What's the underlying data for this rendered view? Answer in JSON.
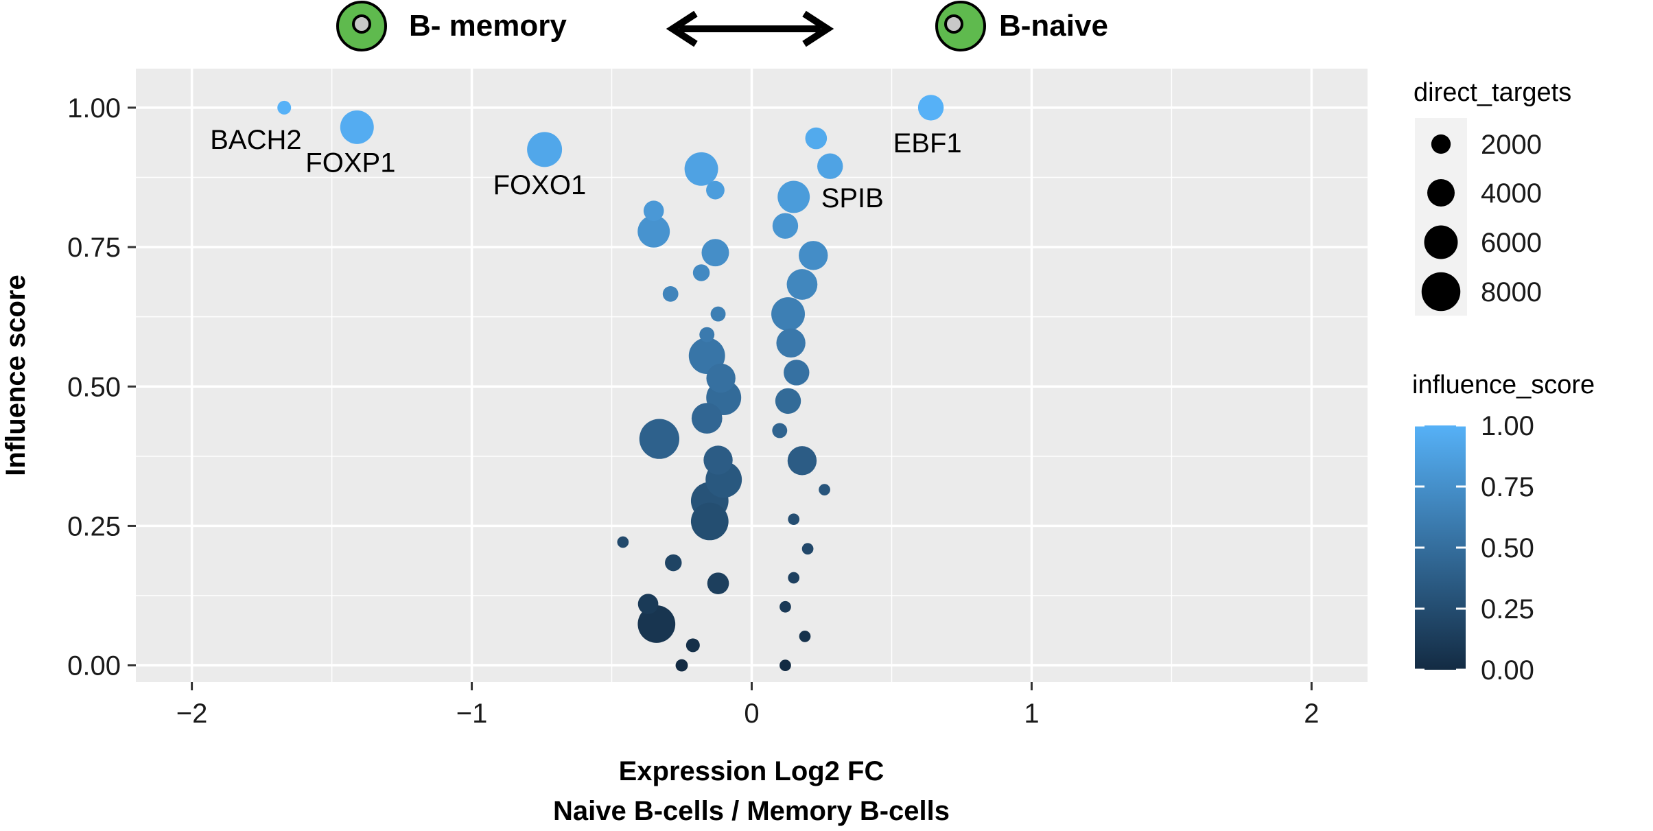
{
  "header": {
    "left_label": "B- memory",
    "right_label": "B-naive"
  },
  "chart_data": {
    "type": "scatter",
    "xlabel_line1": "Expression Log2 FC",
    "xlabel_line2": "Naive B-cells / Memory B-cells",
    "ylabel": "Influence score",
    "xlim": [
      -2.2,
      2.2
    ],
    "ylim": [
      -0.03,
      1.07
    ],
    "x_ticks": [
      -2,
      -1,
      0,
      1,
      2
    ],
    "x_tick_labels": [
      "−2",
      "−1",
      "0",
      "1",
      "2"
    ],
    "y_ticks": [
      0.0,
      0.25,
      0.5,
      0.75,
      1.0
    ],
    "y_tick_labels": [
      "0.00",
      "0.25",
      "0.50",
      "0.75",
      "1.00"
    ],
    "grid": true,
    "panel_background": "#EBEBEB",
    "color_low": "#132B43",
    "color_high": "#56B1F7",
    "size_legend": {
      "title": "direct_targets",
      "values": [
        2000,
        4000,
        6000,
        8000
      ],
      "labels": [
        "2000",
        "4000",
        "6000",
        "8000"
      ]
    },
    "color_legend": {
      "title": "influence_score",
      "ticks": [
        1.0,
        0.75,
        0.5,
        0.25,
        0.0
      ],
      "labels": [
        "1.00",
        "0.75",
        "0.50",
        "0.25",
        "0.00"
      ]
    },
    "points": [
      {
        "x": -1.67,
        "y": 1.0,
        "size": 1000,
        "label": "BACH2"
      },
      {
        "x": -1.41,
        "y": 0.965,
        "size": 6000,
        "label": "FOXP1"
      },
      {
        "x": -0.74,
        "y": 0.925,
        "size": 6500,
        "label": "FOXO1"
      },
      {
        "x": 0.64,
        "y": 1.0,
        "size": 3500,
        "label": "EBF1"
      },
      {
        "x": 0.15,
        "y": 0.84,
        "size": 5500,
        "label": "SPIB"
      },
      {
        "x": 0.23,
        "y": 0.945,
        "size": 2500
      },
      {
        "x": 0.28,
        "y": 0.895,
        "size": 3500
      },
      {
        "x": -0.18,
        "y": 0.89,
        "size": 6000
      },
      {
        "x": -0.13,
        "y": 0.852,
        "size": 1800
      },
      {
        "x": -0.35,
        "y": 0.815,
        "size": 2200
      },
      {
        "x": 0.12,
        "y": 0.788,
        "size": 3500
      },
      {
        "x": -0.35,
        "y": 0.778,
        "size": 5500
      },
      {
        "x": 0.22,
        "y": 0.735,
        "size": 4500
      },
      {
        "x": -0.13,
        "y": 0.74,
        "size": 4000
      },
      {
        "x": -0.18,
        "y": 0.704,
        "size": 1500
      },
      {
        "x": 0.18,
        "y": 0.683,
        "size": 5000
      },
      {
        "x": -0.29,
        "y": 0.666,
        "size": 1300
      },
      {
        "x": -0.12,
        "y": 0.63,
        "size": 1200
      },
      {
        "x": 0.13,
        "y": 0.63,
        "size": 6000
      },
      {
        "x": -0.16,
        "y": 0.593,
        "size": 1200
      },
      {
        "x": 0.14,
        "y": 0.578,
        "size": 4500
      },
      {
        "x": -0.16,
        "y": 0.555,
        "size": 7000
      },
      {
        "x": -0.11,
        "y": 0.515,
        "size": 4500
      },
      {
        "x": 0.16,
        "y": 0.525,
        "size": 3500
      },
      {
        "x": -0.1,
        "y": 0.48,
        "size": 6500
      },
      {
        "x": 0.13,
        "y": 0.474,
        "size": 3500
      },
      {
        "x": -0.16,
        "y": 0.443,
        "size": 5000
      },
      {
        "x": 0.1,
        "y": 0.421,
        "size": 1200
      },
      {
        "x": -0.33,
        "y": 0.406,
        "size": 8500
      },
      {
        "x": -0.12,
        "y": 0.368,
        "size": 4500
      },
      {
        "x": 0.18,
        "y": 0.367,
        "size": 4500
      },
      {
        "x": -0.1,
        "y": 0.333,
        "size": 7000
      },
      {
        "x": 0.26,
        "y": 0.315,
        "size": 700
      },
      {
        "x": -0.15,
        "y": 0.295,
        "size": 7500
      },
      {
        "x": 0.15,
        "y": 0.262,
        "size": 700
      },
      {
        "x": -0.15,
        "y": 0.258,
        "size": 7500
      },
      {
        "x": -0.46,
        "y": 0.221,
        "size": 700
      },
      {
        "x": 0.2,
        "y": 0.209,
        "size": 700
      },
      {
        "x": -0.28,
        "y": 0.184,
        "size": 1500
      },
      {
        "x": 0.15,
        "y": 0.157,
        "size": 700
      },
      {
        "x": -0.12,
        "y": 0.147,
        "size": 2500
      },
      {
        "x": -0.37,
        "y": 0.11,
        "size": 2200
      },
      {
        "x": 0.12,
        "y": 0.105,
        "size": 700
      },
      {
        "x": -0.34,
        "y": 0.074,
        "size": 7500
      },
      {
        "x": 0.19,
        "y": 0.052,
        "size": 700
      },
      {
        "x": -0.21,
        "y": 0.036,
        "size": 1000
      },
      {
        "x": -0.25,
        "y": 0.0,
        "size": 800
      },
      {
        "x": 0.12,
        "y": 0.0,
        "size": 700
      }
    ]
  }
}
